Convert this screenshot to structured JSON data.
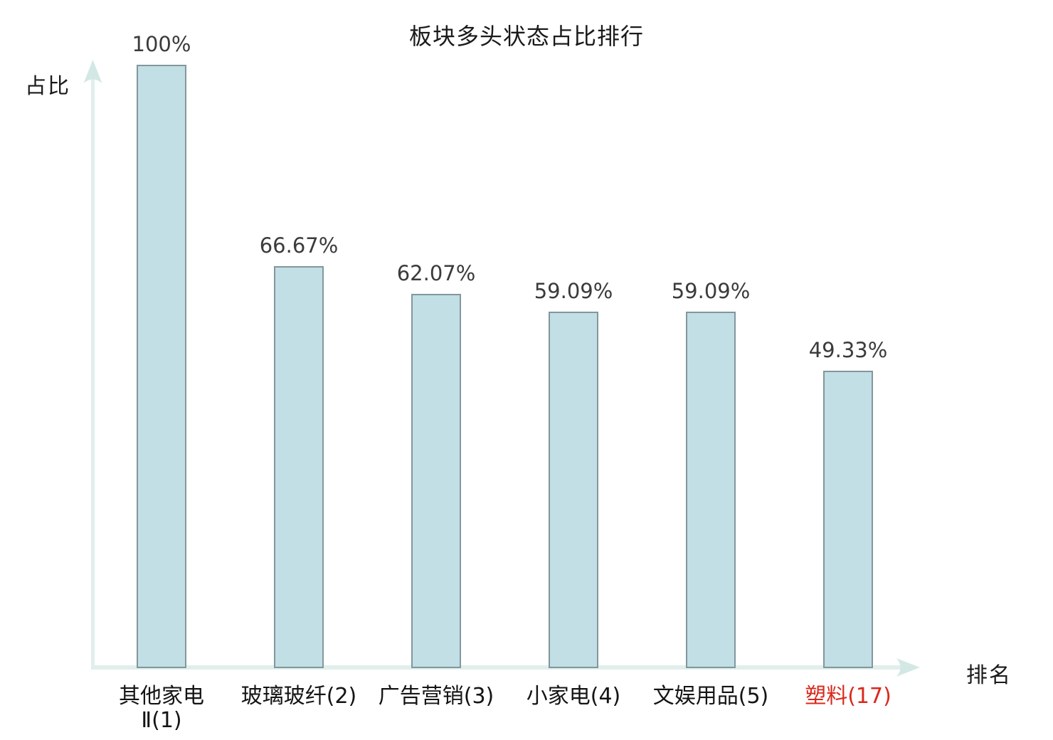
{
  "chart_data": {
    "type": "bar",
    "title": "板块多头状态占比排行",
    "xlabel": "排名",
    "ylabel": "占比",
    "categories": [
      "其他家电Ⅱ(1)",
      "玻璃玻纤(2)",
      "广告营销(3)",
      "小家电(4)",
      "文娱用品(5)",
      "塑料(17)"
    ],
    "category_lines": [
      [
        "其他家电",
        "Ⅱ(1)"
      ],
      [
        "玻璃玻纤(2)"
      ],
      [
        "广告营销(3)"
      ],
      [
        "小家电(4)"
      ],
      [
        "文娱用品(5)"
      ],
      [
        "塑料(17)"
      ]
    ],
    "values": [
      100,
      66.67,
      62.07,
      59.09,
      59.09,
      49.33
    ],
    "value_labels": [
      "100%",
      "66.67%",
      "62.07%",
      "59.09%",
      "59.09%",
      "49.33%"
    ],
    "highlight_index": 5,
    "ylim": [
      0,
      100
    ],
    "grid": false,
    "legend_position": "none",
    "colors": {
      "bar_fill": "#c1dfe4",
      "bar_border": "#82979c",
      "axis_line": "#e1efec",
      "axis_arrow": "#d3e8e4",
      "value_label": "#3b3b3b",
      "category_label": "#141414",
      "highlight": "#d9291d",
      "background": "#ffffff"
    }
  }
}
